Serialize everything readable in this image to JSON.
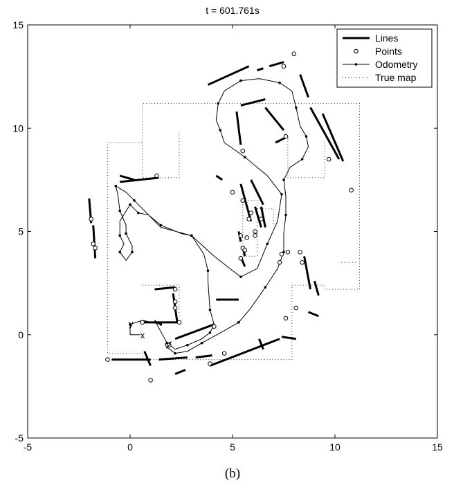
{
  "chart_data": {
    "type": "scatter",
    "title": "t = 601.761s",
    "caption": "(b)",
    "xlim": [
      -5,
      15
    ],
    "ylim": [
      -5,
      15
    ],
    "xticks": [
      -5,
      0,
      5,
      10,
      15
    ],
    "yticks": [
      -5,
      0,
      5,
      10,
      15
    ],
    "grid": false,
    "legend_position": "top-right",
    "legend": [
      {
        "label": "Lines",
        "style": "thick-line"
      },
      {
        "label": "Points",
        "style": "circle-marker"
      },
      {
        "label": "Odometry",
        "style": "line-with-dots"
      },
      {
        "label": "True map",
        "style": "dotted-line"
      }
    ],
    "frame_labels": {
      "x": "x",
      "y": "y"
    },
    "series": {
      "true_map": [
        [
          [
            0.6,
            -1.2
          ],
          [
            0.6,
            -0.9
          ],
          [
            -1.1,
            -0.9
          ],
          [
            -1.1,
            9.3
          ],
          [
            0.6,
            9.3
          ],
          [
            0.6,
            11.2
          ],
          [
            11.2,
            11.2
          ],
          [
            11.2,
            2.2
          ],
          [
            9.5,
            2.2
          ],
          [
            9.5,
            2.4
          ],
          [
            7.9,
            2.4
          ],
          [
            7.9,
            -1.2
          ],
          [
            0.6,
            -1.2
          ]
        ],
        [
          [
            0.6,
            9.3
          ],
          [
            0.6,
            7.6
          ],
          [
            2.4,
            7.6
          ],
          [
            2.4,
            9.8
          ]
        ],
        [
          [
            7.7,
            9.5
          ],
          [
            7.7,
            7.6
          ],
          [
            9.5,
            7.6
          ],
          [
            9.5,
            9.4
          ]
        ],
        [
          [
            0.6,
            2.4
          ],
          [
            2.4,
            2.4
          ],
          [
            2.4,
            0.6
          ]
        ],
        [
          [
            5.5,
            6.5
          ],
          [
            6.2,
            6.5
          ],
          [
            6.2,
            3.8
          ],
          [
            5.5,
            3.8
          ],
          [
            5.5,
            6.5
          ]
        ],
        [
          [
            6.2,
            6.1
          ],
          [
            7.0,
            6.1
          ],
          [
            7.0,
            5.2
          ]
        ],
        [
          [
            10.3,
            3.5
          ],
          [
            11.1,
            3.5
          ]
        ]
      ],
      "odometry": [
        [
          0.0,
          0.0
        ],
        [
          0.0,
          0.5
        ],
        [
          0.6,
          0.7
        ],
        [
          1.5,
          0.5
        ],
        [
          1.2,
          0.7
        ],
        [
          1.8,
          -0.4
        ],
        [
          2.2,
          -0.7
        ],
        [
          2.8,
          -0.5
        ],
        [
          3.5,
          -0.2
        ],
        [
          3.9,
          0.1
        ],
        [
          4.1,
          0.5
        ],
        [
          3.9,
          1.2
        ],
        [
          3.8,
          2.6
        ],
        [
          3.8,
          3.1
        ],
        [
          3.6,
          3.9
        ],
        [
          3.0,
          4.8
        ],
        [
          2.5,
          4.9
        ],
        [
          1.5,
          5.3
        ],
        [
          0.9,
          5.8
        ],
        [
          0.4,
          5.9
        ],
        [
          0.2,
          6.1
        ],
        [
          0.0,
          6.3
        ],
        [
          -0.5,
          5.5
        ],
        [
          -0.5,
          4.8
        ],
        [
          -0.3,
          4.4
        ],
        [
          -0.5,
          4.0
        ],
        [
          -0.2,
          3.6
        ],
        [
          0.1,
          4.0
        ],
        [
          0.1,
          4.3
        ],
        [
          -0.2,
          4.9
        ],
        [
          -0.2,
          5.3
        ],
        [
          -0.5,
          6.0
        ],
        [
          -0.6,
          6.8
        ],
        [
          -0.7,
          7.2
        ],
        [
          -0.2,
          6.9
        ],
        [
          0.2,
          6.5
        ],
        [
          1.5,
          5.2
        ],
        [
          3.0,
          4.8
        ],
        [
          4.1,
          3.8
        ],
        [
          5.4,
          2.8
        ],
        [
          6.2,
          3.2
        ],
        [
          6.7,
          4.4
        ],
        [
          7.2,
          5.5
        ],
        [
          7.4,
          6.8
        ],
        [
          6.7,
          7.7
        ],
        [
          5.6,
          8.6
        ],
        [
          4.6,
          9.3
        ],
        [
          4.4,
          9.9
        ],
        [
          4.2,
          10.4
        ],
        [
          4.3,
          11.2
        ],
        [
          4.6,
          11.8
        ],
        [
          5.4,
          12.3
        ],
        [
          6.3,
          12.4
        ],
        [
          7.3,
          12.2
        ],
        [
          7.9,
          11.8
        ],
        [
          8.1,
          11.0
        ],
        [
          8.3,
          10.1
        ],
        [
          8.6,
          9.6
        ],
        [
          8.7,
          9.1
        ],
        [
          8.4,
          8.5
        ],
        [
          7.8,
          8.1
        ],
        [
          7.5,
          7.5
        ],
        [
          7.6,
          6.7
        ],
        [
          7.6,
          5.8
        ],
        [
          7.5,
          4.9
        ],
        [
          7.5,
          4.0
        ],
        [
          7.2,
          3.2
        ],
        [
          6.6,
          2.3
        ],
        [
          5.9,
          1.3
        ],
        [
          5.3,
          0.6
        ],
        [
          4.6,
          0.2
        ],
        [
          3.5,
          -0.4
        ],
        [
          2.8,
          -0.8
        ],
        [
          2.2,
          -0.9
        ],
        [
          1.8,
          -0.6
        ]
      ],
      "lines": [
        [
          [
            -2.0,
            6.6
          ],
          [
            -1.9,
            5.4
          ]
        ],
        [
          [
            -1.8,
            5.3
          ],
          [
            -1.7,
            3.7
          ]
        ],
        [
          [
            -0.5,
            7.4
          ],
          [
            1.4,
            7.6
          ]
        ],
        [
          [
            -0.5,
            7.7
          ],
          [
            0.2,
            7.5
          ]
        ],
        [
          [
            1.2,
            2.2
          ],
          [
            2.2,
            2.3
          ]
        ],
        [
          [
            2.1,
            2.0
          ],
          [
            2.3,
            0.6
          ]
        ],
        [
          [
            0.6,
            0.6
          ],
          [
            2.4,
            0.6
          ]
        ],
        [
          [
            2.2,
            -0.2
          ],
          [
            4.1,
            0.5
          ]
        ],
        [
          [
            0.7,
            -0.8
          ],
          [
            1.0,
            -1.5
          ]
        ],
        [
          [
            -0.9,
            -1.2
          ],
          [
            1.0,
            -1.2
          ]
        ],
        [
          [
            1.4,
            -1.2
          ],
          [
            2.8,
            -1.1
          ]
        ],
        [
          [
            2.2,
            -1.9
          ],
          [
            2.7,
            -1.7
          ]
        ],
        [
          [
            3.2,
            -1.1
          ],
          [
            4.0,
            -1.0
          ]
        ],
        [
          [
            3.9,
            -1.5
          ],
          [
            7.3,
            -0.2
          ]
        ],
        [
          [
            6.3,
            -0.2
          ],
          [
            6.5,
            -0.7
          ]
        ],
        [
          [
            7.4,
            -0.1
          ],
          [
            8.1,
            -0.2
          ]
        ],
        [
          [
            4.2,
            1.7
          ],
          [
            5.3,
            1.7
          ]
        ],
        [
          [
            4.2,
            7.7
          ],
          [
            4.5,
            7.5
          ]
        ],
        [
          [
            5.3,
            5.0
          ],
          [
            5.4,
            4.5
          ]
        ],
        [
          [
            5.5,
            4.3
          ],
          [
            5.6,
            3.8
          ]
        ],
        [
          [
            5.4,
            3.8
          ],
          [
            5.6,
            3.3
          ]
        ],
        [
          [
            5.4,
            7.3
          ],
          [
            5.9,
            5.5
          ]
        ],
        [
          [
            5.9,
            7.5
          ],
          [
            6.5,
            6.3
          ]
        ],
        [
          [
            6.1,
            6.2
          ],
          [
            6.4,
            5.2
          ]
        ],
        [
          [
            6.4,
            6.2
          ],
          [
            6.6,
            5.2
          ]
        ],
        [
          [
            5.2,
            10.8
          ],
          [
            5.4,
            9.2
          ]
        ],
        [
          [
            5.4,
            11.1
          ],
          [
            6.6,
            11.4
          ]
        ],
        [
          [
            6.6,
            11.0
          ],
          [
            7.5,
            9.9
          ]
        ],
        [
          [
            7.1,
            9.3
          ],
          [
            7.7,
            9.6
          ]
        ],
        [
          [
            8.3,
            12.6
          ],
          [
            8.7,
            11.5
          ]
        ],
        [
          [
            8.8,
            11.0
          ],
          [
            10.2,
            8.5
          ]
        ],
        [
          [
            9.4,
            10.7
          ],
          [
            10.4,
            8.4
          ]
        ],
        [
          [
            3.8,
            12.1
          ],
          [
            5.8,
            13.0
          ]
        ],
        [
          [
            6.2,
            12.8
          ],
          [
            6.5,
            12.9
          ]
        ],
        [
          [
            6.8,
            13.0
          ],
          [
            7.5,
            13.2
          ]
        ],
        [
          [
            8.5,
            3.8
          ],
          [
            8.8,
            2.2
          ]
        ],
        [
          [
            9.0,
            2.6
          ],
          [
            9.2,
            1.9
          ]
        ],
        [
          [
            8.7,
            1.1
          ],
          [
            9.2,
            0.9
          ]
        ]
      ],
      "points": [
        [
          -1.9,
          5.6
        ],
        [
          -1.8,
          4.4
        ],
        [
          -1.7,
          4.2
        ],
        [
          1.3,
          7.7
        ],
        [
          2.2,
          2.2
        ],
        [
          2.2,
          1.6
        ],
        [
          2.2,
          1.3
        ],
        [
          2.4,
          0.6
        ],
        [
          0.6,
          0.6
        ],
        [
          1.9,
          -0.5
        ],
        [
          4.1,
          0.4
        ],
        [
          4.6,
          -0.9
        ],
        [
          3.9,
          -1.4
        ],
        [
          1.0,
          -2.2
        ],
        [
          -1.1,
          -1.2
        ],
        [
          5.0,
          6.9
        ],
        [
          5.5,
          6.5
        ],
        [
          5.9,
          5.9
        ],
        [
          5.8,
          5.6
        ],
        [
          6.1,
          5.0
        ],
        [
          6.4,
          5.6
        ],
        [
          5.4,
          4.8
        ],
        [
          5.7,
          4.7
        ],
        [
          5.5,
          4.2
        ],
        [
          5.6,
          4.1
        ],
        [
          5.4,
          3.7
        ],
        [
          6.1,
          4.8
        ],
        [
          7.3,
          3.5
        ],
        [
          7.4,
          3.9
        ],
        [
          7.7,
          4.0
        ],
        [
          8.3,
          4.0
        ],
        [
          8.4,
          3.5
        ],
        [
          8.1,
          1.3
        ],
        [
          7.6,
          0.8
        ],
        [
          5.5,
          8.9
        ],
        [
          7.6,
          9.6
        ],
        [
          8.0,
          13.6
        ],
        [
          7.5,
          13.0
        ],
        [
          9.7,
          8.5
        ],
        [
          10.8,
          7.0
        ]
      ]
    }
  }
}
